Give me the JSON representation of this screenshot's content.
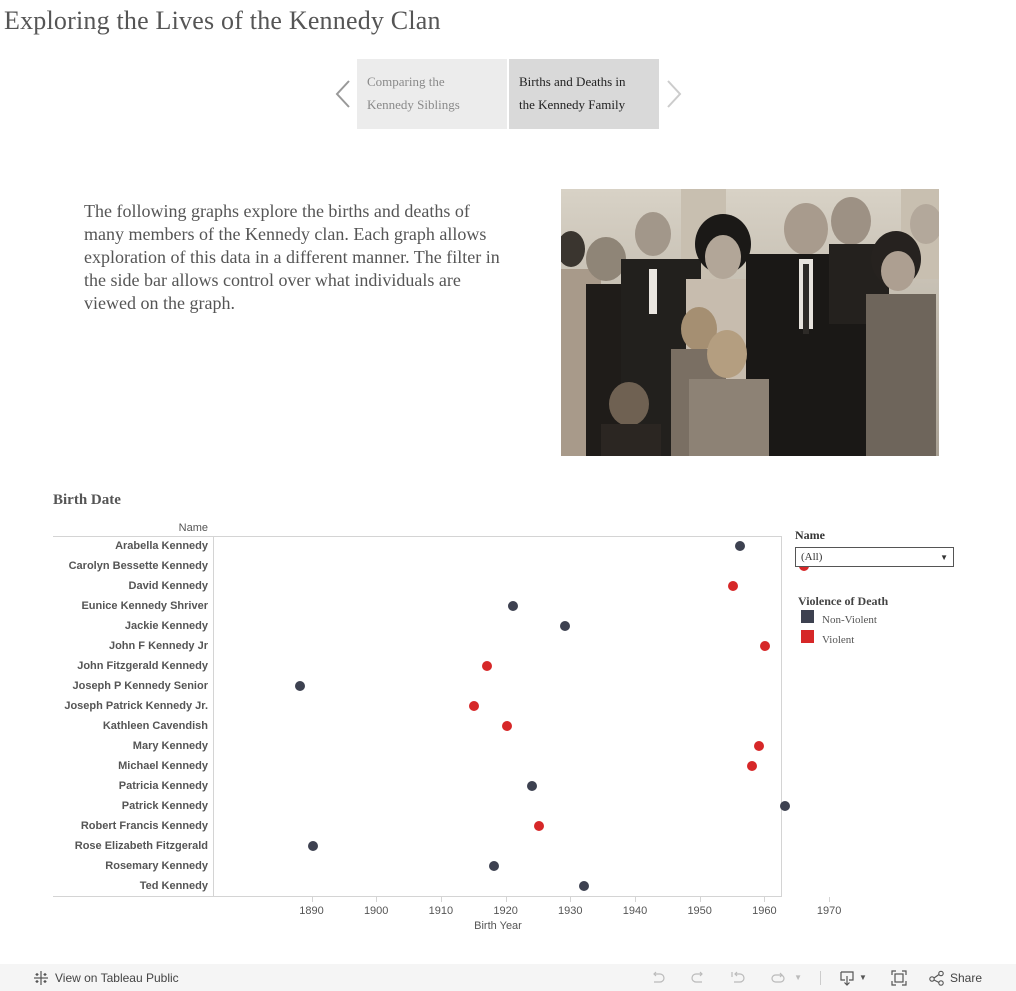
{
  "page": {
    "title": "Exploring the Lives of the Kennedy Clan"
  },
  "story_nav": {
    "prev_label": "Previous",
    "next_label": "Next",
    "points": [
      {
        "label": "Comparing the Kennedy Siblings",
        "line1": "Comparing the",
        "line2": "Kennedy Siblings",
        "active": false
      },
      {
        "label": "Births and Deaths in the Kennedy Family",
        "line1": "Births and Deaths in",
        "line2": "the Kennedy Family",
        "active": true
      }
    ]
  },
  "intro": {
    "text": "The following graphs explore the births and deaths of many members of the Kennedy clan. Each graph allows exploration of this data in a different manner. The filter in the side bar allows control over what individuals are viewed on the graph."
  },
  "photo": {
    "description": "Black-and-white group photo of Kennedy family members"
  },
  "chart": {
    "title": "Birth Date",
    "row_header": "Name"
  },
  "chart_data": {
    "type": "scatter",
    "title": "Birth Date",
    "xlabel": "Birth Year",
    "ylabel": "Name",
    "xlim": [
      1883,
      1971
    ],
    "x_ticks": [
      1890,
      1900,
      1910,
      1920,
      1930,
      1940,
      1950,
      1960,
      1970
    ],
    "grid": false,
    "legend_title": "Violence of Death",
    "legend_position": "right",
    "colors": {
      "Non-Violent": "#3d4150",
      "Violent": "#d62728"
    },
    "categories": [
      "Arabella Kennedy",
      "Carolyn Bessette Kennedy",
      "David Kennedy",
      "Eunice Kennedy Shriver",
      "Jackie Kennedy",
      "John F Kennedy Jr",
      "John Fitzgerald Kennedy",
      "Joseph P Kennedy Senior",
      "Joseph Patrick Kennedy Jr.",
      "Kathleen Cavendish",
      "Mary Kennedy",
      "Michael Kennedy",
      "Patricia Kennedy",
      "Patrick Kennedy",
      "Robert Francis Kennedy",
      "Rose Elizabeth Fitzgerald",
      "Rosemary Kennedy",
      "Ted Kennedy"
    ],
    "points": [
      {
        "name": "Arabella Kennedy",
        "year": 1956,
        "violence": "Non-Violent"
      },
      {
        "name": "Carolyn Bessette Kennedy",
        "year": 1966,
        "violence": "Violent"
      },
      {
        "name": "David Kennedy",
        "year": 1955,
        "violence": "Violent"
      },
      {
        "name": "Eunice Kennedy Shriver",
        "year": 1921,
        "violence": "Non-Violent"
      },
      {
        "name": "Jackie Kennedy",
        "year": 1929,
        "violence": "Non-Violent"
      },
      {
        "name": "John F Kennedy Jr",
        "year": 1960,
        "violence": "Violent"
      },
      {
        "name": "John Fitzgerald Kennedy",
        "year": 1917,
        "violence": "Violent"
      },
      {
        "name": "Joseph P Kennedy Senior",
        "year": 1888,
        "violence": "Non-Violent"
      },
      {
        "name": "Joseph Patrick Kennedy Jr.",
        "year": 1915,
        "violence": "Violent"
      },
      {
        "name": "Kathleen Cavendish",
        "year": 1920,
        "violence": "Violent"
      },
      {
        "name": "Mary Kennedy",
        "year": 1959,
        "violence": "Violent"
      },
      {
        "name": "Michael Kennedy",
        "year": 1958,
        "violence": "Violent"
      },
      {
        "name": "Patricia Kennedy",
        "year": 1924,
        "violence": "Non-Violent"
      },
      {
        "name": "Patrick Kennedy",
        "year": 1963,
        "violence": "Non-Violent"
      },
      {
        "name": "Robert Francis Kennedy",
        "year": 1925,
        "violence": "Violent"
      },
      {
        "name": "Rose Elizabeth Fitzgerald",
        "year": 1890,
        "violence": "Non-Violent"
      },
      {
        "name": "Rosemary Kennedy",
        "year": 1918,
        "violence": "Non-Violent"
      },
      {
        "name": "Ted Kennedy",
        "year": 1932,
        "violence": "Non-Violent"
      }
    ]
  },
  "filter": {
    "title": "Name",
    "selected": "(All)"
  },
  "legend": {
    "title": "Violence of Death",
    "items": [
      {
        "label": "Non-Violent",
        "color": "#3d4150"
      },
      {
        "label": "Violent",
        "color": "#d62728"
      }
    ]
  },
  "toolbar": {
    "view_on_label": "View on Tableau Public",
    "undo_icon": "undo-icon",
    "redo_icon": "redo-icon",
    "revert_icon": "revert-icon",
    "refresh_icon": "refresh-icon",
    "download_icon": "download-icon",
    "fullscreen_icon": "fullscreen-icon",
    "share_label": "Share"
  }
}
